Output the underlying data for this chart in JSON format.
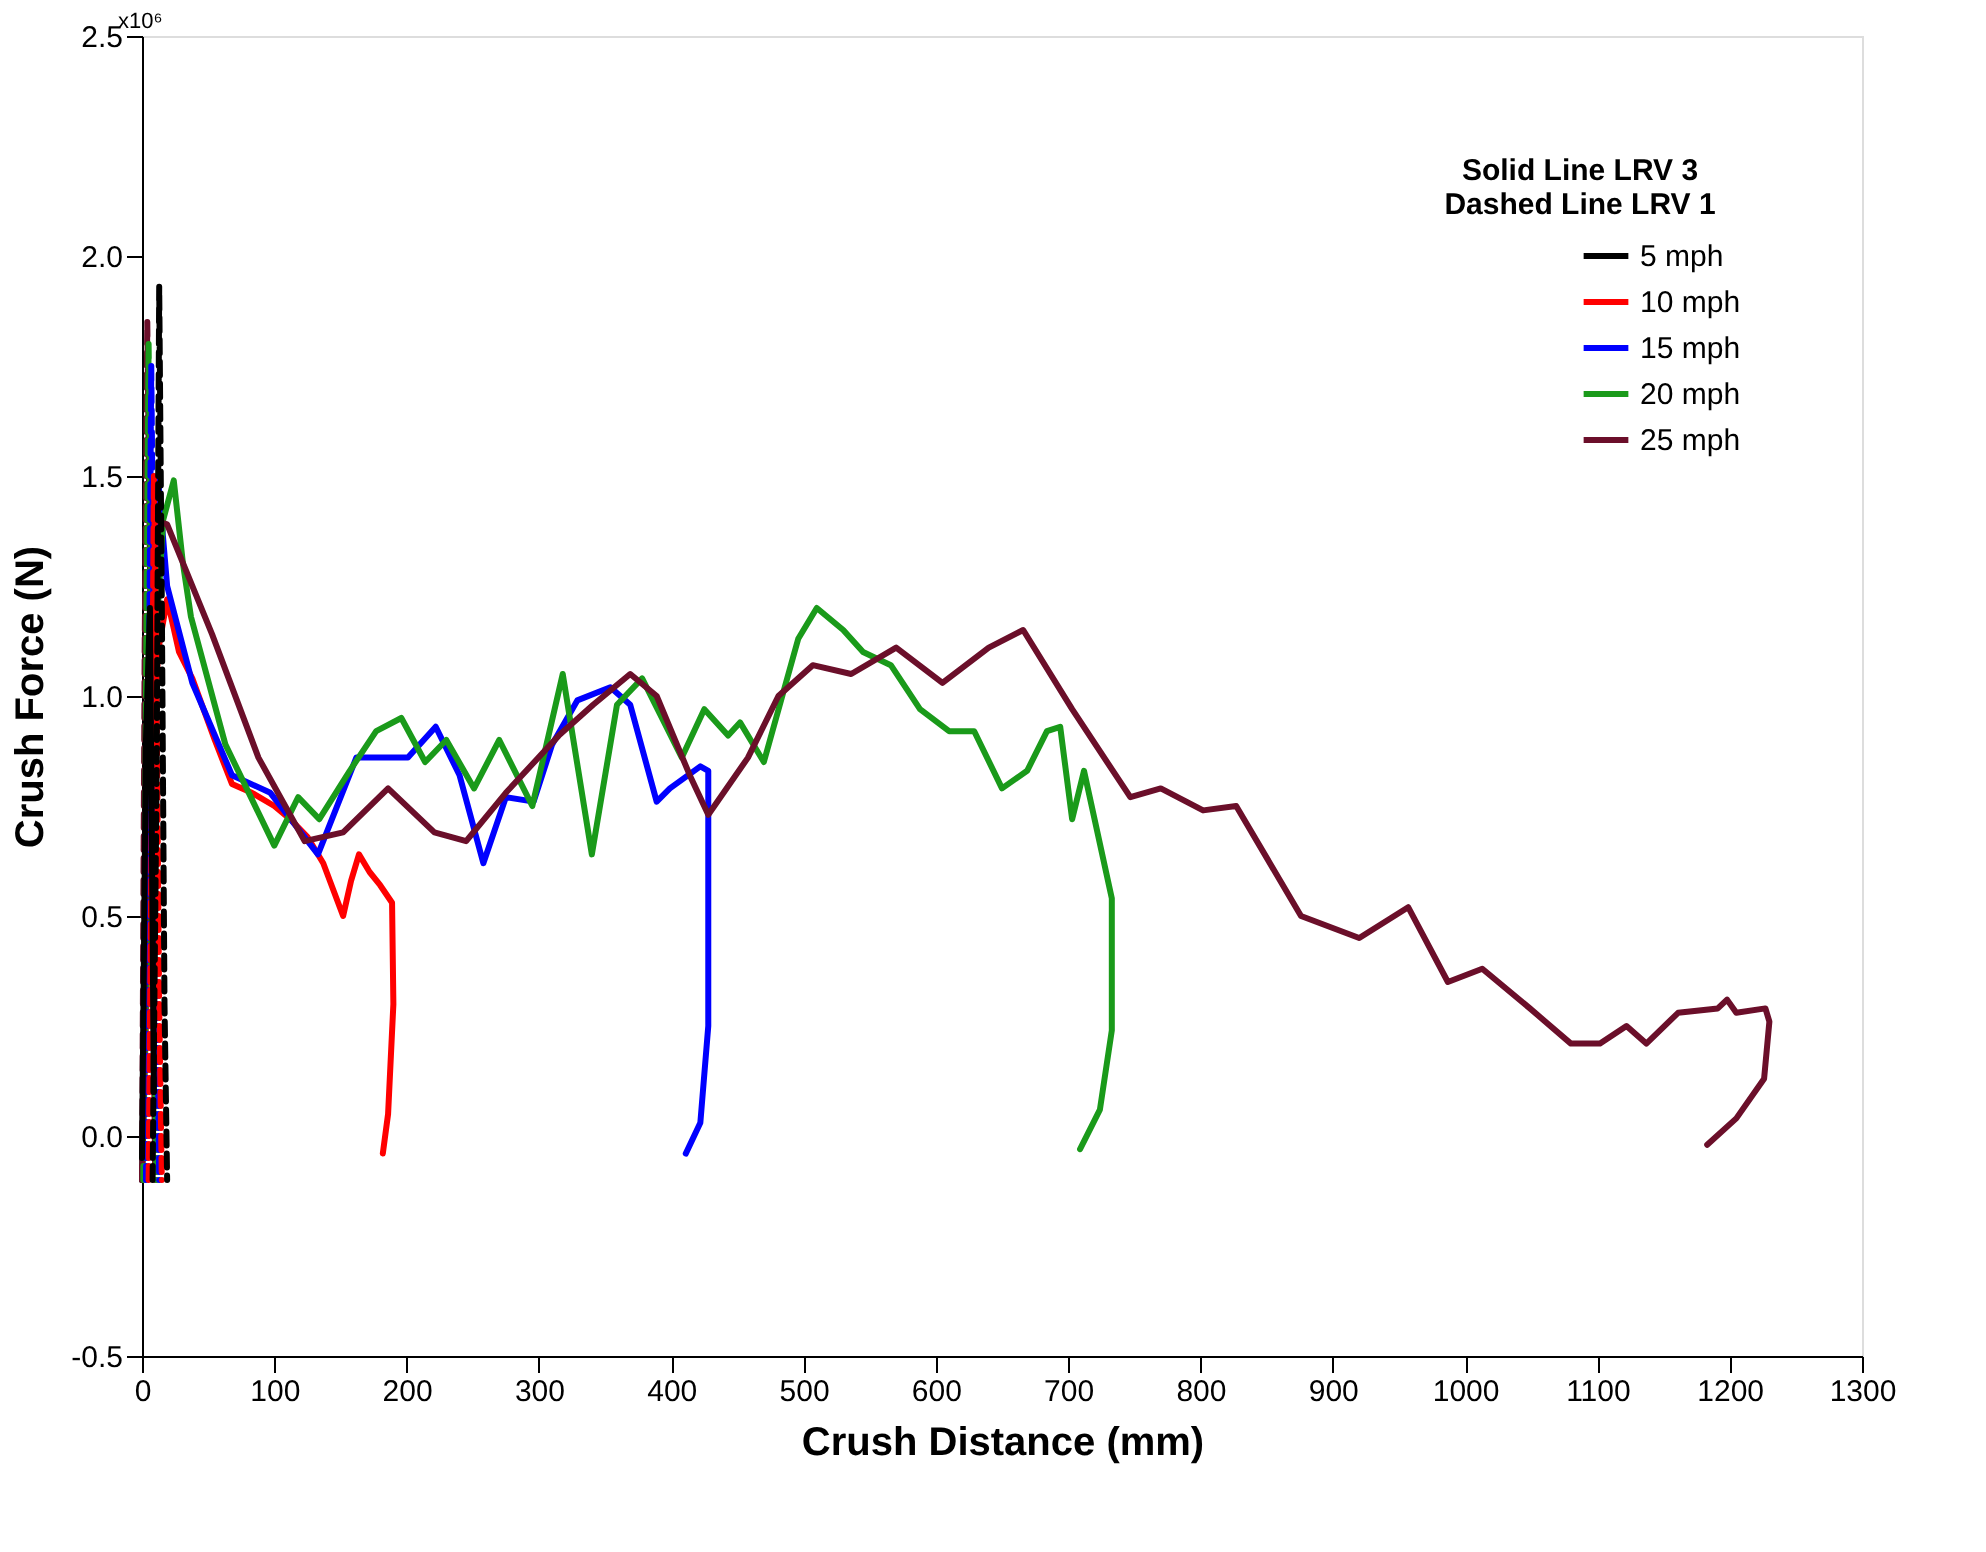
{
  "chart_data": {
    "type": "line",
    "xlabel": "Crush Distance (mm)",
    "ylabel": "Crush Force (N)",
    "legend_title": "Solid Line LRV 3\nDashed Line LRV 1",
    "annotations": [
      "x10⁶"
    ],
    "xlim": [
      0,
      1300
    ],
    "xticks": [
      0,
      100,
      200,
      300,
      400,
      500,
      600,
      700,
      800,
      900,
      {
        "value": 1000,
        "label": "1000"
      },
      {
        "value": 1100,
        "label": "1100"
      },
      {
        "value": 1200,
        "label": "1200"
      },
      {
        "value": 1300,
        "label": "1300"
      }
    ],
    "ylim": [
      -0.5,
      2.5
    ],
    "yticks": [
      -0.5,
      {
        "value": 0,
        "label": "0.0"
      },
      0.5,
      {
        "value": 1,
        "label": "1.0"
      },
      1.5,
      {
        "value": 2,
        "label": "2.0"
      },
      2.5
    ],
    "grid": false,
    "legend": "top right",
    "marker": "none",
    "series": [
      {
        "name": "5 mph",
        "color": "#000000",
        "line_style": "solid",
        "x": [
          0,
          3,
          6,
          9
        ],
        "values": [
          -0.05,
          0.9,
          1.2,
          0.1
        ]
      },
      {
        "name": "10 mph",
        "color": "#ff0000",
        "line_style": "solid",
        "x": [
          0,
          5,
          12,
          19,
          28,
          38,
          55,
          68,
          83,
          100,
          112,
          125,
          137,
          152,
          158,
          164,
          172,
          180,
          189,
          190,
          186,
          182
        ],
        "values": [
          -0.1,
          0.5,
          1.1,
          1.22,
          1.1,
          1.04,
          0.9,
          0.8,
          0.78,
          0.75,
          0.72,
          0.68,
          0.62,
          0.5,
          0.58,
          0.64,
          0.6,
          0.57,
          0.53,
          0.3,
          0.05,
          -0.04
        ]
      },
      {
        "name": "15 mph",
        "color": "#0000ff",
        "line_style": "solid",
        "x": [
          0,
          6,
          12,
          19,
          38,
          68,
          97,
          133,
          162,
          182,
          201,
          222,
          240,
          258,
          275,
          296,
          310,
          329,
          354,
          369,
          389,
          399,
          422,
          428,
          428,
          422,
          411
        ],
        "values": [
          -0.1,
          0.8,
          1.5,
          1.25,
          1.03,
          0.82,
          0.78,
          0.64,
          0.86,
          0.86,
          0.86,
          0.93,
          0.82,
          0.62,
          0.77,
          0.76,
          0.89,
          0.99,
          1.02,
          0.98,
          0.76,
          0.79,
          0.84,
          0.83,
          0.25,
          0.03,
          -0.04
        ]
      },
      {
        "name": "20 mph",
        "color": "#1a9a1a",
        "line_style": "solid",
        "x": [
          0,
          8,
          16,
          24,
          31,
          37,
          63,
          100,
          118,
          134,
          157,
          177,
          196,
          214,
          230,
          251,
          270,
          295,
          318,
          340,
          359,
          378,
          408,
          425,
          443,
          452,
          470,
          496,
          510,
          530,
          545,
          566,
          588,
          610,
          629,
          650,
          669,
          684,
          694,
          703,
          712,
          733,
          733,
          724,
          709
        ],
        "values": [
          -0.1,
          1.0,
          1.4,
          1.49,
          1.3,
          1.18,
          0.89,
          0.66,
          0.77,
          0.72,
          0.83,
          0.92,
          0.95,
          0.85,
          0.9,
          0.79,
          0.9,
          0.75,
          1.05,
          0.64,
          0.98,
          1.04,
          0.86,
          0.97,
          0.91,
          0.94,
          0.85,
          1.13,
          1.2,
          1.15,
          1.1,
          1.07,
          0.97,
          0.92,
          0.92,
          0.79,
          0.83,
          0.92,
          0.93,
          0.72,
          0.83,
          0.54,
          0.24,
          0.06,
          -0.03
        ]
      },
      {
        "name": "25 mph",
        "color": "#6b0f2a",
        "line_style": "solid",
        "x": [
          0,
          5,
          9,
          19,
          53,
          88,
          123,
          152,
          186,
          221,
          245,
          275,
          315,
          341,
          369,
          389,
          414,
          428,
          458,
          481,
          507,
          536,
          570,
          605,
          640,
          666,
          703,
          747,
          770,
          802,
          827,
          876,
          920,
          957,
          987,
          1013,
          1049,
          1080,
          1102,
          1122,
          1137,
          1161,
          1191,
          1198,
          1205,
          1227,
          1230,
          1226,
          1205,
          1183
        ],
        "values": [
          -0.1,
          1.0,
          1.4,
          1.39,
          1.14,
          0.86,
          0.67,
          0.69,
          0.79,
          0.69,
          0.67,
          0.78,
          0.91,
          0.98,
          1.05,
          1.0,
          0.82,
          0.73,
          0.86,
          1.0,
          1.07,
          1.05,
          1.11,
          1.03,
          1.11,
          1.15,
          0.97,
          0.77,
          0.79,
          0.74,
          0.75,
          0.5,
          0.45,
          0.52,
          0.35,
          0.38,
          0.29,
          0.21,
          0.21,
          0.25,
          0.21,
          0.28,
          0.29,
          0.31,
          0.28,
          0.29,
          0.26,
          0.13,
          0.04,
          -0.02
        ]
      },
      {
        "color": "#000000",
        "line_style": "dashed",
        "x": [
          8,
          11,
          13,
          15,
          17,
          19
        ],
        "values": [
          -0.1,
          0.8,
          1.93,
          1.2,
          0.3,
          -0.1
        ]
      },
      {
        "color": "#6b0f2a",
        "line_style": "dashed",
        "x": [
          0,
          2,
          4,
          6,
          8,
          10
        ],
        "values": [
          -0.1,
          1.1,
          1.85,
          1.3,
          0.5,
          -0.1
        ]
      },
      {
        "color": "#1a9a1a",
        "line_style": "dashed",
        "x": [
          1,
          3,
          5,
          7,
          9,
          11
        ],
        "values": [
          -0.1,
          1.0,
          1.8,
          1.2,
          0.4,
          -0.1
        ]
      },
      {
        "color": "#0000ff",
        "line_style": "dashed",
        "x": [
          3,
          5,
          7,
          9,
          11,
          13
        ],
        "values": [
          -0.1,
          0.9,
          1.75,
          1.1,
          0.4,
          -0.1
        ]
      },
      {
        "color": "#ff0000",
        "line_style": "dashed",
        "x": [
          5,
          7,
          9,
          11,
          13,
          15
        ],
        "values": [
          -0.1,
          0.6,
          1.5,
          1.0,
          0.3,
          -0.1
        ]
      }
    ]
  }
}
